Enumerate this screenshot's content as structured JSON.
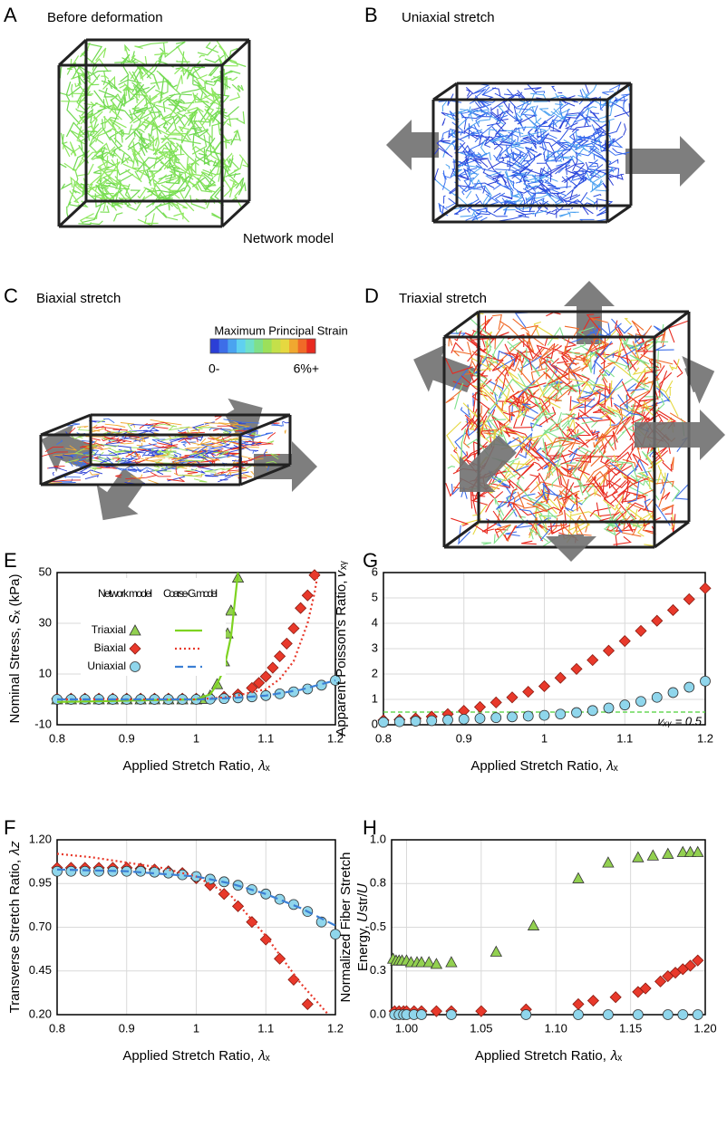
{
  "panels": {
    "A": {
      "label": "A",
      "title": "Before deformation",
      "note": "Network model"
    },
    "B": {
      "label": "B",
      "title": "Uniaxial stretch"
    },
    "C": {
      "label": "C",
      "title": "Biaxial stretch"
    },
    "D": {
      "label": "D",
      "title": "Triaxial stretch"
    },
    "colorbar": {
      "title": "Maximum Principal Strain",
      "min_label": "0-",
      "max_label": "6%+",
      "colors": [
        "#2b3fd6",
        "#3d6ee8",
        "#4aa3f0",
        "#5fd0f0",
        "#6fe0c8",
        "#7fe08a",
        "#9ce05a",
        "#c4e04a",
        "#e6d840",
        "#f0a830",
        "#f06a28",
        "#e82a20"
      ]
    }
  },
  "chart_data": [
    {
      "type": "scatter",
      "panel": "E",
      "xlabel": "Applied Stretch Ratio, 𝜆ₓ",
      "ylabel": "Nominal Stress, 𝑆ₓ (kPa)",
      "xlim": [
        0.8,
        1.2
      ],
      "xticks": [
        0.8,
        0.9,
        1,
        1.1,
        1.2
      ],
      "ylim": [
        -10,
        50
      ],
      "yticks": [
        -10,
        10,
        30,
        50
      ],
      "grid": true,
      "legend": {
        "headers": [
          "Network model",
          "Coarse-G. model"
        ]
      },
      "series": [
        {
          "name": "Triaxial",
          "color": "#92d050",
          "marker": "triangle",
          "x": [
            0.8,
            0.82,
            0.84,
            0.86,
            0.88,
            0.9,
            0.92,
            0.94,
            0.96,
            0.98,
            1.0,
            1.01,
            1.02,
            1.03,
            1.04,
            1.045,
            1.05,
            1.06
          ],
          "values": [
            0,
            0,
            0,
            0,
            0,
            0,
            0,
            0,
            0,
            0,
            0,
            0.2,
            1.5,
            6,
            15,
            26,
            35,
            48
          ],
          "model": {
            "color": "#7ed321",
            "dash": "solid",
            "x": [
              0.8,
              0.85,
              0.9,
              0.95,
              1.0,
              1.02,
              1.03,
              1.04,
              1.05,
              1.06
            ],
            "values": [
              -1,
              -0.8,
              -0.5,
              -0.2,
              0,
              2,
              6,
              12,
              25,
              50
            ]
          }
        },
        {
          "name": "Biaxial",
          "color": "#e8392b",
          "marker": "diamond",
          "x": [
            0.8,
            0.82,
            0.84,
            0.86,
            0.88,
            0.9,
            0.92,
            0.94,
            0.96,
            0.98,
            1.0,
            1.02,
            1.04,
            1.06,
            1.08,
            1.09,
            1.1,
            1.11,
            1.12,
            1.13,
            1.14,
            1.15,
            1.16,
            1.17
          ],
          "values": [
            0.3,
            0.3,
            0.3,
            0.3,
            0.3,
            0.3,
            0.3,
            0.3,
            0.3,
            0.3,
            0.3,
            0.5,
            1,
            2,
            4.5,
            6.5,
            9,
            12.5,
            17,
            22,
            28,
            36,
            41,
            49
          ],
          "model": {
            "color": "#e8392b",
            "dash": "dotted",
            "x": [
              0.8,
              0.9,
              1.0,
              1.05,
              1.1,
              1.12,
              1.14,
              1.16,
              1.17,
              1.175
            ],
            "values": [
              0,
              0,
              0,
              1,
              4,
              8,
              15,
              30,
              42,
              50
            ]
          }
        },
        {
          "name": "Uniaxial",
          "color": "#8fd6ec",
          "marker": "circle",
          "x": [
            0.8,
            0.82,
            0.84,
            0.86,
            0.88,
            0.9,
            0.92,
            0.94,
            0.96,
            0.98,
            1.0,
            1.02,
            1.04,
            1.06,
            1.08,
            1.1,
            1.12,
            1.14,
            1.16,
            1.18,
            1.2
          ],
          "values": [
            0,
            0,
            0,
            0,
            0,
            0,
            0,
            0,
            0,
            0,
            0,
            0.1,
            0.3,
            0.6,
            1,
            1.5,
            2.2,
            3,
            4.1,
            5.6,
            7.5
          ],
          "model": {
            "color": "#3b7fd4",
            "dash": "dashed",
            "x": [
              0.8,
              0.9,
              1.0,
              1.05,
              1.1,
              1.15,
              1.2
            ],
            "values": [
              0,
              0,
              0,
              0.5,
              1.5,
              3.8,
              7.5
            ]
          }
        }
      ]
    },
    {
      "type": "scatter",
      "panel": "G",
      "xlabel": "Applied Stretch Ratio, 𝜆ₓ",
      "ylabel": "Apparent Poisson's Ratio, 𝜈ₓᵧ",
      "xlim": [
        0.8,
        1.2
      ],
      "xticks": [
        0.8,
        0.9,
        1,
        1.1,
        1.2
      ],
      "ylim": [
        0,
        6
      ],
      "yticks": [
        0,
        1,
        2,
        3,
        4,
        5,
        6
      ],
      "grid": true,
      "reference": {
        "value": 0.5,
        "color": "#4cd137",
        "label": "𝜈ₓᵧ = 0.5"
      },
      "series": [
        {
          "color": "#e8392b",
          "marker": "diamond",
          "x": [
            0.8,
            0.82,
            0.84,
            0.86,
            0.88,
            0.9,
            0.92,
            0.94,
            0.96,
            0.98,
            1.0,
            1.02,
            1.04,
            1.06,
            1.08,
            1.1,
            1.12,
            1.14,
            1.16,
            1.18,
            1.2
          ],
          "values": [
            0.18,
            0.2,
            0.25,
            0.32,
            0.42,
            0.55,
            0.7,
            0.88,
            1.08,
            1.3,
            1.52,
            1.85,
            2.2,
            2.55,
            2.92,
            3.3,
            3.7,
            4.1,
            4.52,
            4.95,
            5.38
          ]
        },
        {
          "color": "#8fd6ec",
          "marker": "circle",
          "x": [
            0.8,
            0.82,
            0.84,
            0.86,
            0.88,
            0.9,
            0.92,
            0.94,
            0.96,
            0.98,
            1.0,
            1.02,
            1.04,
            1.06,
            1.08,
            1.1,
            1.12,
            1.14,
            1.16,
            1.18,
            1.2
          ],
          "values": [
            0.1,
            0.12,
            0.14,
            0.16,
            0.19,
            0.22,
            0.25,
            0.28,
            0.31,
            0.34,
            0.37,
            0.42,
            0.48,
            0.56,
            0.66,
            0.78,
            0.92,
            1.08,
            1.27,
            1.48,
            1.72
          ]
        }
      ]
    },
    {
      "type": "scatter",
      "panel": "F",
      "xlabel": "Applied Stretch Ratio, 𝜆ₓ",
      "ylabel": "Transverse Stretch Ratio, 𝜆𝑧",
      "xlim": [
        0.8,
        1.2
      ],
      "xticks": [
        0.8,
        0.9,
        1,
        1.1,
        1.2
      ],
      "ylim": [
        0.2,
        1.2
      ],
      "yticks": [
        {
          "value": 0.2,
          "label": "0.20"
        },
        0.45,
        {
          "value": 0.7,
          "label": "0.70"
        },
        0.95,
        {
          "value": 1.2,
          "label": "1.20"
        }
      ],
      "grid": true,
      "series": [
        {
          "color": "#e8392b",
          "marker": "diamond",
          "x": [
            0.8,
            0.82,
            0.84,
            0.86,
            0.88,
            0.9,
            0.92,
            0.94,
            0.96,
            0.98,
            1.0,
            1.02,
            1.04,
            1.06,
            1.08,
            1.1,
            1.12,
            1.14,
            1.16
          ],
          "values": [
            1.04,
            1.04,
            1.04,
            1.04,
            1.04,
            1.04,
            1.035,
            1.03,
            1.02,
            1.01,
            0.98,
            0.94,
            0.89,
            0.82,
            0.73,
            0.63,
            0.52,
            0.4,
            0.26
          ],
          "model": {
            "color": "#e8392b",
            "dash": "dotted",
            "x": [
              0.8,
              0.85,
              0.9,
              0.95,
              1.0,
              1.05,
              1.1,
              1.15,
              1.19
            ],
            "values": [
              1.12,
              1.1,
              1.07,
              1.04,
              0.99,
              0.88,
              0.65,
              0.38,
              0.2
            ]
          }
        },
        {
          "color": "#8fd6ec",
          "marker": "circle",
          "x": [
            0.8,
            0.82,
            0.84,
            0.86,
            0.88,
            0.9,
            0.92,
            0.94,
            0.96,
            0.98,
            1.0,
            1.02,
            1.04,
            1.06,
            1.08,
            1.1,
            1.12,
            1.14,
            1.16,
            1.18,
            1.2
          ],
          "values": [
            1.02,
            1.02,
            1.02,
            1.02,
            1.02,
            1.02,
            1.02,
            1.015,
            1.01,
            1.0,
            0.99,
            0.975,
            0.96,
            0.94,
            0.915,
            0.89,
            0.86,
            0.83,
            0.79,
            0.73,
            0.66
          ],
          "model": {
            "color": "#3b7fd4",
            "dash": "dashed",
            "x": [
              0.8,
              0.9,
              1.0,
              1.05,
              1.1,
              1.15,
              1.2
            ],
            "values": [
              1.03,
              1.02,
              0.99,
              0.95,
              0.89,
              0.81,
              0.71
            ]
          }
        }
      ]
    },
    {
      "type": "scatter",
      "panel": "H",
      "xlabel": "Applied Stretch Ratio, 𝜆ₓ",
      "ylabel": [
        "Normalized Fiber Stretch",
        "Energy, 𝑈str/𝑈"
      ],
      "xlim": [
        0.99,
        1.2
      ],
      "xticks": [
        {
          "value": 1,
          "label": "1.00"
        },
        1.05,
        {
          "value": 1.1,
          "label": "1.10"
        },
        1.15,
        {
          "value": 1.2,
          "label": "1.20"
        }
      ],
      "ylim": [
        0,
        1
      ],
      "yticks": [
        {
          "value": 0,
          "label": "0.0"
        },
        {
          "value": 0.25,
          "label": "0.3"
        },
        0.5,
        {
          "value": 0.75,
          "label": "0.8"
        },
        {
          "value": 1,
          "label": "1.0"
        }
      ],
      "grid": true,
      "series": [
        {
          "color": "#92d050",
          "marker": "triangle",
          "x": [
            0.991,
            0.993,
            0.995,
            0.997,
            1.0,
            1.003,
            1.007,
            1.01,
            1.015,
            1.02,
            1.03,
            1.06,
            1.085,
            1.115,
            1.135,
            1.155,
            1.165,
            1.175,
            1.185,
            1.19,
            1.195
          ],
          "values": [
            0.32,
            0.31,
            0.31,
            0.31,
            0.31,
            0.3,
            0.3,
            0.3,
            0.3,
            0.29,
            0.3,
            0.36,
            0.51,
            0.78,
            0.87,
            0.9,
            0.91,
            0.92,
            0.93,
            0.93,
            0.93
          ]
        },
        {
          "color": "#e8392b",
          "marker": "diamond",
          "x": [
            0.992,
            0.995,
            0.998,
            1.0,
            1.005,
            1.01,
            1.02,
            1.03,
            1.05,
            1.08,
            1.115,
            1.125,
            1.14,
            1.155,
            1.16,
            1.17,
            1.175,
            1.18,
            1.185,
            1.19,
            1.195
          ],
          "values": [
            0.02,
            0.02,
            0.02,
            0.02,
            0.02,
            0.02,
            0.02,
            0.02,
            0.02,
            0.03,
            0.06,
            0.08,
            0.1,
            0.13,
            0.15,
            0.19,
            0.22,
            0.24,
            0.26,
            0.28,
            0.31
          ]
        },
        {
          "color": "#8fd6ec",
          "marker": "circle",
          "x": [
            0.992,
            0.995,
            0.998,
            1.0,
            1.005,
            1.01,
            1.03,
            1.08,
            1.115,
            1.135,
            1.155,
            1.175,
            1.185,
            1.195
          ],
          "values": [
            0,
            0,
            0,
            0,
            0,
            0,
            0,
            0,
            0,
            0,
            0,
            0,
            0,
            0
          ]
        }
      ]
    }
  ]
}
